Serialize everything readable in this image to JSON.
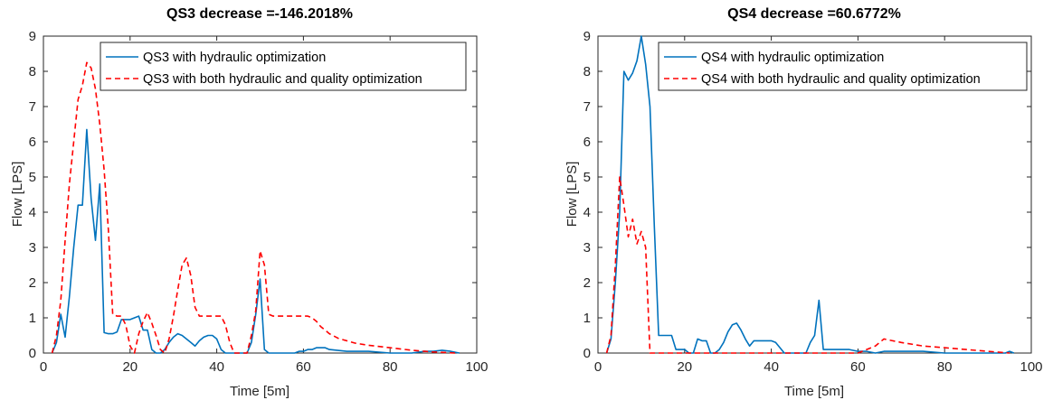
{
  "chart_data": [
    {
      "type": "line",
      "title": "QS3 decrease =-146.2018%",
      "xlabel": "Time [5m]",
      "ylabel": "Flow [LPS]",
      "xlim": [
        0,
        100
      ],
      "ylim": [
        0,
        9
      ],
      "xticks": [
        0,
        20,
        40,
        60,
        80,
        100
      ],
      "yticks": [
        0,
        1,
        2,
        3,
        4,
        5,
        6,
        7,
        8,
        9
      ],
      "grid": false,
      "legend_position": "top-right",
      "series": [
        {
          "name": "QS3 with hydraulic optimization",
          "color": "#0072BD",
          "dash": "solid",
          "x": [
            2,
            3,
            4,
            5,
            6,
            7,
            8,
            9,
            10,
            11,
            12,
            13,
            14,
            15,
            16,
            17,
            18,
            19,
            20,
            21,
            22,
            23,
            24,
            25,
            26,
            27,
            28,
            29,
            30,
            31,
            32,
            33,
            34,
            35,
            36,
            37,
            38,
            39,
            40,
            41,
            42,
            43,
            44,
            45,
            46,
            47,
            48,
            49,
            50,
            51,
            52,
            53,
            54,
            55,
            56,
            57,
            58,
            59,
            60,
            61,
            62,
            63,
            64,
            65,
            66,
            70,
            75,
            80,
            85,
            88,
            90,
            92,
            94,
            96
          ],
          "y": [
            0,
            0.3,
            1.1,
            0.45,
            1.6,
            3.0,
            4.2,
            4.2,
            6.35,
            4.4,
            3.2,
            4.8,
            0.58,
            0.55,
            0.55,
            0.6,
            0.95,
            0.95,
            0.95,
            1.0,
            1.05,
            0.65,
            0.65,
            0.1,
            0,
            0,
            0.1,
            0.3,
            0.45,
            0.55,
            0.5,
            0.4,
            0.3,
            0.2,
            0.35,
            0.45,
            0.5,
            0.5,
            0.4,
            0.1,
            0,
            0,
            0,
            0,
            0,
            0,
            0.3,
            1.1,
            2.1,
            0.1,
            0,
            0,
            0,
            0,
            0,
            0,
            0,
            0.05,
            0.05,
            0.1,
            0.1,
            0.15,
            0.15,
            0.15,
            0.1,
            0.05,
            0.05,
            0,
            0,
            0.05,
            0.05,
            0.08,
            0.05,
            0
          ]
        },
        {
          "name": "QS3 with both hydraulic and quality optimization",
          "color": "#FF0000",
          "dash": "dashed",
          "x": [
            2,
            3,
            4,
            5,
            6,
            7,
            8,
            9,
            10,
            11,
            12,
            13,
            14,
            15,
            16,
            17,
            18,
            19,
            20,
            21,
            22,
            23,
            24,
            25,
            26,
            27,
            28,
            29,
            30,
            31,
            32,
            33,
            34,
            35,
            36,
            37,
            38,
            39,
            40,
            41,
            42,
            43,
            44,
            45,
            46,
            47,
            48,
            49,
            50,
            51,
            52,
            53,
            54,
            55,
            56,
            57,
            58,
            59,
            60,
            61,
            62,
            63,
            64,
            65,
            66,
            68,
            70,
            72,
            75,
            80,
            85,
            88,
            90,
            92,
            95
          ],
          "y": [
            0,
            0.5,
            1.5,
            3.2,
            4.8,
            6.0,
            7.2,
            7.6,
            8.25,
            8.1,
            7.5,
            6.5,
            5.2,
            3.5,
            1.1,
            1.05,
            1.05,
            0.8,
            0.2,
            0,
            0.55,
            0.9,
            1.15,
            0.85,
            0.5,
            0.1,
            0,
            0.4,
            1.05,
            1.8,
            2.5,
            2.7,
            2.2,
            1.3,
            1.05,
            1.05,
            1.05,
            1.05,
            1.05,
            1.05,
            0.8,
            0.3,
            0,
            0,
            0,
            0,
            0.5,
            1.2,
            2.9,
            2.5,
            1.1,
            1.05,
            1.05,
            1.05,
            1.05,
            1.05,
            1.05,
            1.05,
            1.05,
            1.05,
            1.0,
            0.9,
            0.75,
            0.65,
            0.55,
            0.42,
            0.35,
            0.28,
            0.22,
            0.15,
            0.08,
            0.05,
            0.03,
            0.02,
            0.0
          ]
        }
      ]
    },
    {
      "type": "line",
      "title": "QS4 decrease =60.6772%",
      "xlabel": "Time [5m]",
      "ylabel": "Flow [LPS]",
      "xlim": [
        0,
        100
      ],
      "ylim": [
        0,
        9
      ],
      "xticks": [
        0,
        20,
        40,
        60,
        80,
        100
      ],
      "yticks": [
        0,
        1,
        2,
        3,
        4,
        5,
        6,
        7,
        8,
        9
      ],
      "grid": false,
      "legend_position": "top-right",
      "series": [
        {
          "name": "QS4 with hydraulic optimization",
          "color": "#0072BD",
          "dash": "solid",
          "x": [
            2,
            3,
            4,
            5,
            6,
            7,
            8,
            9,
            10,
            11,
            12,
            13,
            14,
            15,
            16,
            17,
            18,
            19,
            20,
            21,
            22,
            23,
            24,
            25,
            26,
            27,
            28,
            29,
            30,
            31,
            32,
            33,
            34,
            35,
            36,
            37,
            38,
            39,
            40,
            41,
            42,
            43,
            44,
            45,
            46,
            47,
            48,
            49,
            50,
            51,
            52,
            53,
            55,
            58,
            60,
            62,
            64,
            66,
            70,
            75,
            80,
            85,
            88,
            90,
            92,
            94,
            95,
            96
          ],
          "y": [
            0,
            0.4,
            2.0,
            4.0,
            8.0,
            7.75,
            7.95,
            8.3,
            9.0,
            8.2,
            7.0,
            3.6,
            0.5,
            0.5,
            0.5,
            0.5,
            0.1,
            0.1,
            0.1,
            0,
            0,
            0.4,
            0.35,
            0.35,
            0,
            0,
            0.1,
            0.3,
            0.6,
            0.8,
            0.85,
            0.65,
            0.4,
            0.2,
            0.35,
            0.35,
            0.35,
            0.35,
            0.35,
            0.3,
            0.15,
            0,
            0,
            0,
            0,
            0,
            0,
            0.3,
            0.5,
            1.5,
            0.1,
            0.1,
            0.1,
            0.1,
            0.05,
            0.05,
            0,
            0.05,
            0.05,
            0.05,
            0,
            0,
            0,
            0,
            0,
            0,
            0.05,
            0
          ]
        },
        {
          "name": "QS4 with both hydraulic and quality optimization",
          "color": "#FF0000",
          "dash": "dashed",
          "x": [
            2,
            3,
            4,
            5,
            6,
            7,
            8,
            9,
            10,
            11,
            12,
            14,
            20,
            40,
            55,
            60,
            62,
            64,
            66,
            68,
            70,
            75,
            80,
            85,
            90,
            95
          ],
          "y": [
            0,
            0.5,
            2.5,
            5.0,
            4.2,
            3.3,
            3.8,
            3.1,
            3.45,
            3.0,
            0,
            0,
            0,
            0,
            0,
            0,
            0.1,
            0.2,
            0.4,
            0.35,
            0.3,
            0.2,
            0.15,
            0.1,
            0.05,
            0
          ]
        }
      ]
    }
  ]
}
